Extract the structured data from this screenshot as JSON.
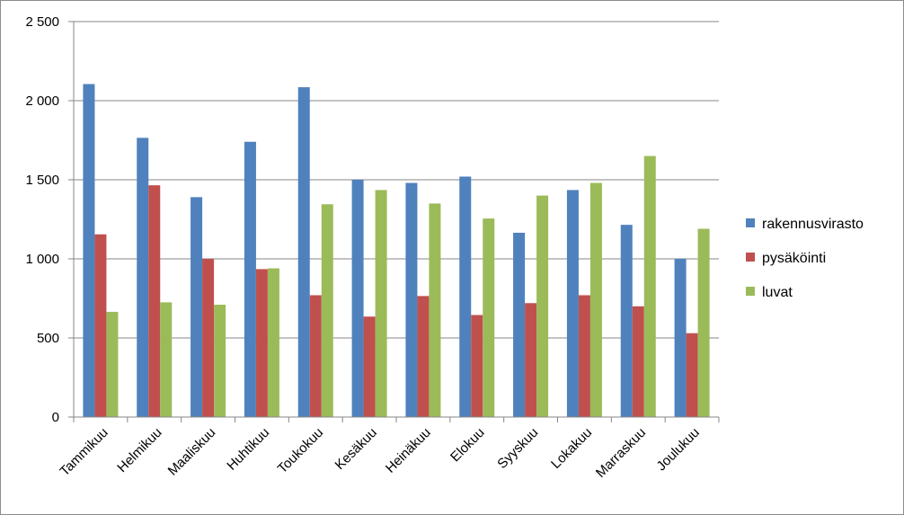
{
  "chart_data": {
    "type": "bar",
    "categories": [
      "Tammikuu",
      "Helmikuu",
      "Maaliskuu",
      "Huhtikuu",
      "Toukokuu",
      "Kesäkuu",
      "Heinäkuu",
      "Elokuu",
      "Syyskuu",
      "Lokakuu",
      "Marraskuu",
      "Joulukuu"
    ],
    "series": [
      {
        "name": "rakennusvirasto",
        "color": "#4f81bd",
        "values": [
          2105,
          1765,
          1390,
          1740,
          2085,
          1500,
          1480,
          1520,
          1165,
          1435,
          1215,
          1000
        ]
      },
      {
        "name": "pysäköinti",
        "color": "#c0504d",
        "values": [
          1155,
          1465,
          1000,
          935,
          770,
          635,
          765,
          645,
          720,
          770,
          700,
          530
        ]
      },
      {
        "name": "luvat",
        "color": "#9bbb59",
        "values": [
          665,
          725,
          710,
          940,
          1345,
          1435,
          1350,
          1255,
          1400,
          1480,
          1650,
          1190
        ]
      }
    ],
    "yticks": [
      "0",
      "500",
      "1 000",
      "1 500",
      "2 000",
      "2 500"
    ],
    "ylim": [
      0,
      2500
    ],
    "grid": true,
    "legend_position": "right",
    "title": "",
    "xlabel": "",
    "ylabel": ""
  }
}
